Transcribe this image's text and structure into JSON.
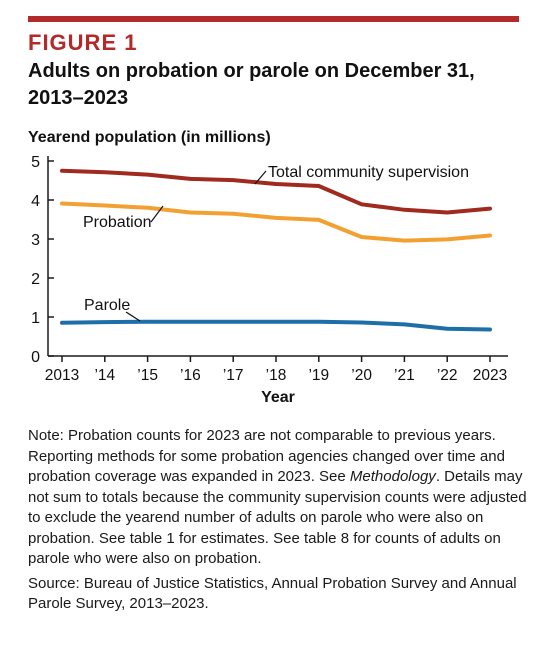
{
  "figure": {
    "label": "FIGURE 1",
    "title": "Adults on probation or parole on December 31, 2013–2023"
  },
  "chart_data": {
    "type": "line",
    "ylabel": "Yearend population (in millions)",
    "xlabel": "Year",
    "x": [
      "2013",
      "’14",
      "’15",
      "’16",
      "’17",
      "’18",
      "’19",
      "’20",
      "’21",
      "’22",
      "2023"
    ],
    "ylim": [
      0,
      5
    ],
    "yticks": [
      0,
      1,
      2,
      3,
      4,
      5
    ],
    "grid": false,
    "series": [
      {
        "name": "Total community supervision",
        "color": "#a02a1e",
        "values": [
          4.75,
          4.71,
          4.65,
          4.54,
          4.51,
          4.41,
          4.36,
          3.89,
          3.75,
          3.68,
          3.78
        ]
      },
      {
        "name": "Probation",
        "color": "#f3a033",
        "values": [
          3.91,
          3.86,
          3.8,
          3.68,
          3.65,
          3.54,
          3.49,
          3.05,
          2.96,
          2.99,
          3.09
        ]
      },
      {
        "name": "Parole",
        "color": "#1e6ea8",
        "values": [
          0.85,
          0.87,
          0.88,
          0.88,
          0.88,
          0.88,
          0.88,
          0.86,
          0.81,
          0.7,
          0.68
        ]
      }
    ],
    "axis_color": "#1a1a1a"
  },
  "notes": {
    "note_before_emph": "Note: Probation counts for 2023 are not comparable to previous years. Reporting methods for some probation agencies changed over time and probation coverage was expanded in 2023. See ",
    "note_emph": "Methodology",
    "note_after_emph": ". Details may not sum to totals because the community supervision counts were adjusted to exclude the yearend number of adults on parole who were also on probation. See table 1 for estimates. See table 8 for counts of adults on parole who were also on probation.",
    "source": "Source: Bureau of Justice Statistics, Annual Probation Survey and Annual Parole Survey, 2013–2023."
  }
}
